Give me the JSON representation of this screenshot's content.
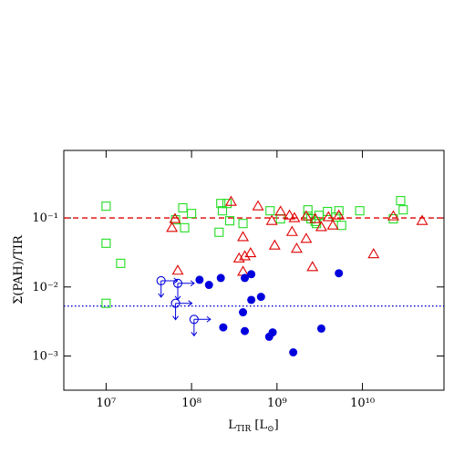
{
  "chart_data": {
    "type": "scatter",
    "xlabel_parts": [
      "L",
      "TIR",
      " [L",
      "⊙",
      "]"
    ],
    "ylabel": "Σ(PAH)/TIR",
    "xscale": "log",
    "yscale": "log",
    "xlim": [
      3200000,
      90000000000
    ],
    "ylim": [
      0.00032,
      0.95
    ],
    "xticks": [
      {
        "value": 10000000,
        "label": "10⁷"
      },
      {
        "value": 100000000,
        "label": "10⁸"
      },
      {
        "value": 1000000000,
        "label": "10⁹"
      },
      {
        "value": 10000000000,
        "label": "10¹⁰"
      }
    ],
    "yticks": [
      {
        "value": 0.001,
        "label": "10⁻³"
      },
      {
        "value": 0.01,
        "label": "10⁻²"
      },
      {
        "value": 0.1,
        "label": "10⁻¹"
      }
    ],
    "hlines": [
      {
        "value": 0.1,
        "color": "#e00000",
        "dash": "dashed"
      },
      {
        "value": 0.0053,
        "color": "#0000d0",
        "dash": "dotted"
      }
    ],
    "series": [
      {
        "color": "#22dd22",
        "marker": "open-square",
        "x": [
          10000000,
          10000000,
          14800000,
          10000000,
          65000000,
          83000000,
          79000000,
          100000000,
          210000000,
          220000000,
          230000000,
          260000000,
          280000000,
          400000000,
          830000000,
          1100000000,
          2300000000,
          2500000000,
          2300000000,
          3100000000,
          2800000000,
          2900000000,
          3900000000,
          5300000000,
          5700000000,
          4900000000,
          9300000000,
          23000000000,
          28000000000,
          30000000000
        ],
        "values": [
          0.148,
          0.043,
          0.022,
          0.0058,
          0.094,
          0.072,
          0.14,
          0.116,
          0.062,
          0.162,
          0.127,
          0.162,
          0.091,
          0.083,
          0.127,
          0.097,
          0.106,
          0.097,
          0.131,
          0.109,
          0.089,
          0.083,
          0.124,
          0.127,
          0.078,
          0.103,
          0.127,
          0.097,
          0.178,
          0.131
        ]
      },
      {
        "color": "#e00000",
        "marker": "open-triangle",
        "x": [
          59000000,
          64000000,
          69000000,
          290000000,
          360000000,
          400000000,
          420000000,
          400000000,
          490000000,
          600000000,
          870000000,
          940000000,
          1100000000,
          1400000000,
          1500000000,
          1600000000,
          1700000000,
          2200000000,
          2200000000,
          2600000000,
          2800000000,
          3300000000,
          4000000000,
          4500000000,
          5300000000,
          13500000000,
          23000000000,
          50000000000
        ],
        "values": [
          0.072,
          0.097,
          0.0173,
          0.172,
          0.026,
          0.053,
          0.028,
          0.0167,
          0.031,
          0.148,
          0.091,
          0.04,
          0.124,
          0.109,
          0.063,
          0.1,
          0.036,
          0.05,
          0.106,
          0.0195,
          0.097,
          0.074,
          0.103,
          0.078,
          0.109,
          0.03,
          0.106,
          0.091
        ]
      },
      {
        "color": "#0000dd",
        "marker": "filled-circle",
        "x": [
          124000000,
          160000000,
          220000000,
          400000000,
          420000000,
          500000000,
          500000000,
          650000000,
          235000000,
          420000000,
          810000000,
          890000000,
          1550000000,
          3300000000,
          5300000000
        ],
        "values": [
          0.0127,
          0.0107,
          0.0135,
          0.0043,
          0.0135,
          0.0153,
          0.0065,
          0.0072,
          0.0026,
          0.0023,
          0.0019,
          0.0022,
          0.00113,
          0.0025,
          0.0158
        ]
      },
      {
        "color": "#0000dd",
        "marker": "open-circle",
        "arrows": [
          "right",
          "down"
        ],
        "x": [
          44000000,
          69000000,
          65000000,
          107000000
        ],
        "values": [
          0.0123,
          0.0113,
          0.0058,
          0.0034
        ]
      }
    ]
  }
}
